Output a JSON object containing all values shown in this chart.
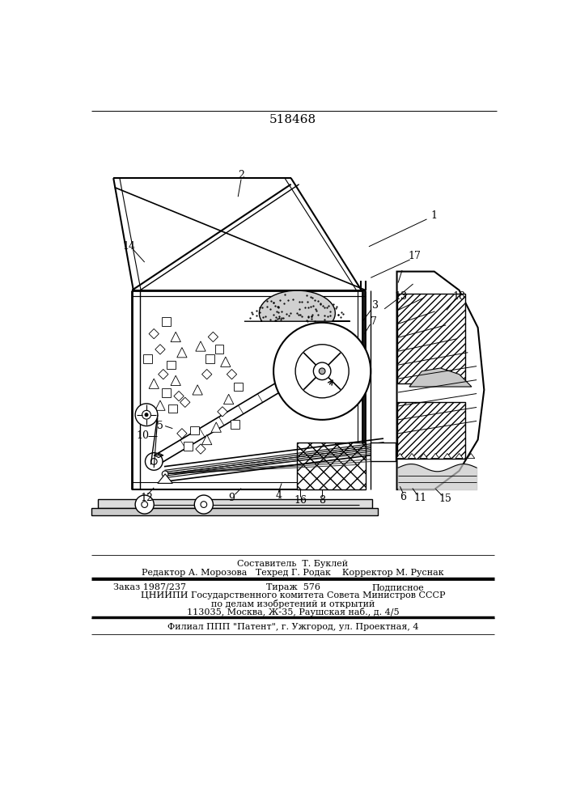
{
  "patent_number": "518468",
  "bg_color": "#ffffff",
  "line_color": "#000000",
  "footer": {
    "composer": "Составитель  Т. Буклей",
    "editor_line": "Редактор А. Морозова   Техред Г. Родак    Корректор М. Руснак",
    "order": "Заказ 1987/237",
    "tirazh": "Тираж  576",
    "podpisnoe": "Подписное",
    "org1": "ЦНИИПИ Государственного комитета Совета Министров СССР",
    "org2": "по делам изобретений и открытий",
    "address": "113035, Москва, Ж-35, Раушская наб., д. 4/5",
    "filial": "Филиал ППП \"Патент\", г. Ужгород, ул. Проектная, 4"
  }
}
